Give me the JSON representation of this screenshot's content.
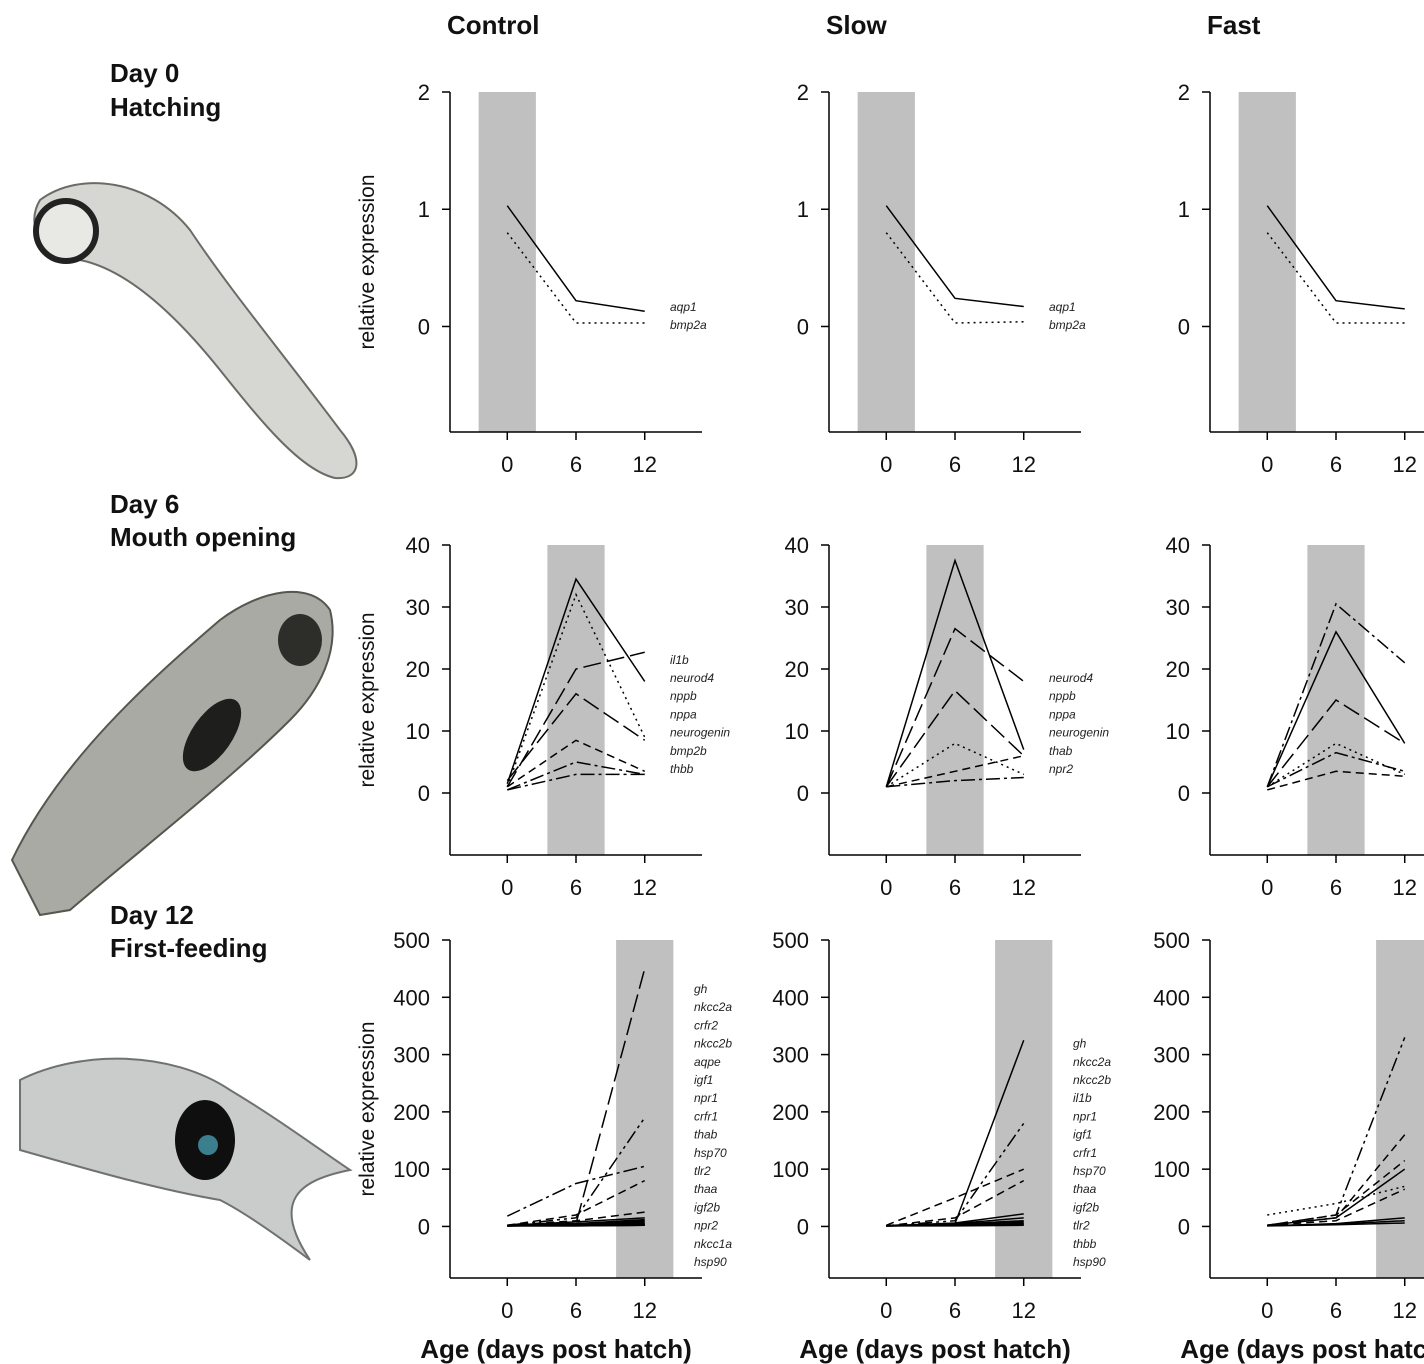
{
  "figure": {
    "columns": [
      "Control",
      "Slow",
      "Fast"
    ],
    "rows": [
      {
        "day": "Day 0",
        "stage": "Hatching"
      },
      {
        "day": "Day 6",
        "stage": "Mouth opening"
      },
      {
        "day": "Day 12",
        "stage": "First-feeding"
      }
    ]
  },
  "chart_data": [
    {
      "type": "line",
      "ylabel": "relative expression",
      "x": [
        0,
        6,
        12
      ],
      "xlim": [
        -5,
        17
      ],
      "xticks": [
        0,
        6,
        12
      ],
      "ylim": [
        -0.9,
        2
      ],
      "yticks": [
        0,
        1,
        2
      ],
      "band": [
        -2.5,
        2.5
      ],
      "band_color": "#c0c0c0",
      "color": "#000000",
      "series": [
        {
          "name": "aqp1",
          "dash": "solid",
          "values": [
            1.03,
            0.22,
            0.13
          ]
        },
        {
          "name": "bmp2a",
          "dash": "dot",
          "values": [
            0.8,
            0.03,
            0.03
          ]
        }
      ]
    },
    {
      "type": "line",
      "x": [
        0,
        6,
        12
      ],
      "xlim": [
        -5,
        17
      ],
      "xticks": [
        0,
        6,
        12
      ],
      "ylim": [
        -0.9,
        2
      ],
      "yticks": [
        0,
        1,
        2
      ],
      "band": [
        -2.5,
        2.5
      ],
      "band_color": "#c0c0c0",
      "color": "#000000",
      "series": [
        {
          "name": "aqp1",
          "dash": "solid",
          "values": [
            1.03,
            0.24,
            0.17
          ]
        },
        {
          "name": "bmp2a",
          "dash": "dot",
          "values": [
            0.8,
            0.03,
            0.04
          ]
        }
      ]
    },
    {
      "type": "line",
      "x": [
        0,
        6,
        12
      ],
      "xlim": [
        -5,
        17
      ],
      "xticks": [
        0,
        6,
        12
      ],
      "ylim": [
        -0.9,
        2
      ],
      "yticks": [
        0,
        1,
        2
      ],
      "band": [
        -2.5,
        2.5
      ],
      "band_color": "#c0c0c0",
      "color": "#000000",
      "series": [
        {
          "dash": "solid",
          "values": [
            1.03,
            0.22,
            0.15
          ]
        },
        {
          "dash": "dot",
          "values": [
            0.8,
            0.03,
            0.03
          ]
        }
      ]
    },
    {
      "type": "line",
      "ylabel": "relative expression",
      "x": [
        0,
        6,
        12
      ],
      "xlim": [
        -5,
        17
      ],
      "xticks": [
        0,
        6,
        12
      ],
      "ylim": [
        -10,
        40
      ],
      "yticks": [
        0,
        10,
        20,
        30,
        40
      ],
      "band": [
        3.5,
        8.5
      ],
      "band_color": "#c0c0c0",
      "color": "#000000",
      "series": [
        {
          "name": "il1b",
          "dash": "solid",
          "values": [
            1.5,
            34.5,
            18
          ]
        },
        {
          "name": "neurod4",
          "dash": "dot",
          "values": [
            1,
            32,
            9
          ]
        },
        {
          "name": "nppb",
          "dash": "longdash",
          "values": [
            1,
            20,
            22.7
          ]
        },
        {
          "name": "nppa",
          "dash": "longdash",
          "values": [
            2,
            16,
            8.5
          ]
        },
        {
          "name": "neurogenin",
          "dash": "dash",
          "values": [
            1,
            8.5,
            3.5
          ]
        },
        {
          "name": "bmp2b",
          "dash": "dashdot",
          "values": [
            0.5,
            5,
            3
          ]
        },
        {
          "name": "thbb",
          "dash": "dashdot",
          "values": [
            0.5,
            3,
            3
          ]
        }
      ]
    },
    {
      "type": "line",
      "x": [
        0,
        6,
        12
      ],
      "xlim": [
        -5,
        17
      ],
      "xticks": [
        0,
        6,
        12
      ],
      "ylim": [
        -10,
        40
      ],
      "yticks": [
        0,
        10,
        20,
        30,
        40
      ],
      "band": [
        3.5,
        8.5
      ],
      "band_color": "#c0c0c0",
      "color": "#000000",
      "series": [
        {
          "name": "neurod4",
          "dash": "solid",
          "values": [
            1,
            37.5,
            7
          ]
        },
        {
          "name": "nppb",
          "dash": "longdash",
          "values": [
            1,
            26.5,
            18
          ]
        },
        {
          "name": "nppa",
          "dash": "longdash",
          "values": [
            1,
            16.5,
            6
          ]
        },
        {
          "name": "neurogenin",
          "dash": "dot",
          "values": [
            1,
            8,
            3
          ]
        },
        {
          "name": "thab",
          "dash": "dash",
          "values": [
            1,
            3.5,
            6
          ]
        },
        {
          "name": "npr2",
          "dash": "dashdot",
          "values": [
            1,
            2,
            2.5
          ]
        }
      ]
    },
    {
      "type": "line",
      "x": [
        0,
        6,
        12
      ],
      "xlim": [
        -5,
        17
      ],
      "xticks": [
        0,
        6,
        12
      ],
      "ylim": [
        -10,
        40
      ],
      "yticks": [
        0,
        10,
        20,
        30,
        40
      ],
      "band": [
        3.5,
        8.5
      ],
      "band_color": "#c0c0c0",
      "color": "#000000",
      "series": [
        {
          "dash": "dashdot",
          "values": [
            1,
            30.5,
            21
          ]
        },
        {
          "dash": "solid",
          "values": [
            1,
            26,
            8
          ]
        },
        {
          "dash": "longdash",
          "values": [
            1,
            15,
            8
          ]
        },
        {
          "dash": "dot",
          "values": [
            1,
            8,
            3
          ]
        },
        {
          "dash": "dashdot",
          "values": [
            1,
            6.5,
            3.5
          ]
        },
        {
          "dash": "dash",
          "values": [
            0.5,
            3.5,
            2.7
          ]
        }
      ]
    },
    {
      "type": "line",
      "ylabel": "relative expression",
      "xlabel": "Age (days post hatch)",
      "x": [
        0,
        6,
        12
      ],
      "xlim": [
        -5,
        17
      ],
      "xticks": [
        0,
        6,
        12
      ],
      "ylim": [
        -90,
        500
      ],
      "yticks": [
        0,
        100,
        200,
        300,
        400,
        500
      ],
      "band": [
        9.5,
        14.5
      ],
      "band_color": "#c0c0c0",
      "color": "#000000",
      "series": [
        {
          "name": "gh",
          "dash": "longdash",
          "values": [
            2,
            5,
            450
          ]
        },
        {
          "name": "nkcc2a",
          "dash": "dashdotdot",
          "values": [
            2,
            15,
            190
          ]
        },
        {
          "name": "crfr2",
          "dash": "dashdot",
          "values": [
            18,
            75,
            105
          ]
        },
        {
          "name": "nkcc2b",
          "dash": "dash",
          "values": [
            2,
            20,
            80
          ]
        },
        {
          "name": "aqpe",
          "dash": "dash",
          "values": [
            2,
            10,
            25
          ]
        },
        {
          "name": "igf1",
          "dash": "solid",
          "values": [
            2,
            8,
            15
          ]
        },
        {
          "name": "npr1",
          "dash": "solid",
          "values": [
            2,
            5,
            12
          ]
        },
        {
          "name": "crfr1",
          "dash": "solid",
          "values": [
            1,
            5,
            10
          ]
        },
        {
          "name": "thab",
          "dash": "solid",
          "values": [
            1,
            4,
            8
          ]
        },
        {
          "name": "hsp70",
          "dash": "solid",
          "values": [
            1,
            3,
            6
          ]
        },
        {
          "name": "tlr2",
          "dash": "solid",
          "values": [
            1,
            3,
            5
          ]
        },
        {
          "name": "thaa",
          "dash": "solid",
          "values": [
            1,
            2,
            4
          ]
        },
        {
          "name": "igf2b",
          "dash": "solid",
          "values": [
            1,
            2,
            3
          ]
        },
        {
          "name": "npr2",
          "dash": "solid",
          "values": [
            1,
            2,
            3
          ]
        },
        {
          "name": "nkcc1a",
          "dash": "solid",
          "values": [
            1,
            1,
            2
          ]
        },
        {
          "name": "hsp90",
          "dash": "solid",
          "values": [
            1,
            1,
            2
          ]
        }
      ]
    },
    {
      "type": "line",
      "xlabel": "Age (days post hatch)",
      "x": [
        0,
        6,
        12
      ],
      "xlim": [
        -5,
        17
      ],
      "xticks": [
        0,
        6,
        12
      ],
      "ylim": [
        -90,
        500
      ],
      "yticks": [
        0,
        100,
        200,
        300,
        400,
        500
      ],
      "band": [
        9.5,
        14.5
      ],
      "band_color": "#c0c0c0",
      "color": "#000000",
      "series": [
        {
          "name": "gh",
          "dash": "solid",
          "values": [
            1,
            5,
            325
          ]
        },
        {
          "name": "nkcc2a",
          "dash": "dashdotdot",
          "values": [
            1,
            10,
            180
          ]
        },
        {
          "name": "nkcc2b",
          "dash": "dash",
          "values": [
            2,
            50,
            100
          ]
        },
        {
          "name": "il1b",
          "dash": "dash",
          "values": [
            1,
            15,
            80
          ]
        },
        {
          "name": "npr1",
          "dash": "solid",
          "values": [
            1,
            6,
            22
          ]
        },
        {
          "name": "igf1",
          "dash": "solid",
          "values": [
            1,
            5,
            15
          ]
        },
        {
          "name": "crfr1",
          "dash": "solid",
          "values": [
            1,
            4,
            10
          ]
        },
        {
          "name": "hsp70",
          "dash": "solid",
          "values": [
            1,
            3,
            8
          ]
        },
        {
          "name": "thaa",
          "dash": "solid",
          "values": [
            1,
            3,
            6
          ]
        },
        {
          "name": "igf2b",
          "dash": "solid",
          "values": [
            1,
            2,
            5
          ]
        },
        {
          "name": "tlr2",
          "dash": "solid",
          "values": [
            1,
            2,
            4
          ]
        },
        {
          "name": "thbb",
          "dash": "solid",
          "values": [
            1,
            2,
            3
          ]
        },
        {
          "name": "hsp90",
          "dash": "solid",
          "values": [
            1,
            1,
            2
          ]
        }
      ]
    },
    {
      "type": "line",
      "xlabel": "Age (days post hatch)",
      "x": [
        0,
        6,
        12
      ],
      "xlim": [
        -5,
        17
      ],
      "xticks": [
        0,
        6,
        12
      ],
      "ylim": [
        -90,
        500
      ],
      "yticks": [
        0,
        100,
        200,
        300,
        400,
        500
      ],
      "band": [
        9.5,
        14.5
      ],
      "band_color": "#c0c0c0",
      "color": "#000000",
      "series": [
        {
          "dash": "dashdotdot",
          "values": [
            2,
            20,
            330
          ]
        },
        {
          "dash": "dash",
          "values": [
            2,
            15,
            160
          ]
        },
        {
          "dash": "dash",
          "values": [
            2,
            20,
            115
          ]
        },
        {
          "dash": "solid",
          "values": [
            2,
            15,
            100
          ]
        },
        {
          "dash": "dot",
          "values": [
            20,
            40,
            70
          ]
        },
        {
          "dash": "dash",
          "values": [
            2,
            10,
            65
          ]
        },
        {
          "dash": "solid",
          "values": [
            1,
            5,
            15
          ]
        },
        {
          "dash": "solid",
          "values": [
            1,
            4,
            10
          ]
        },
        {
          "dash": "solid",
          "values": [
            1,
            3,
            6
          ]
        }
      ]
    }
  ]
}
